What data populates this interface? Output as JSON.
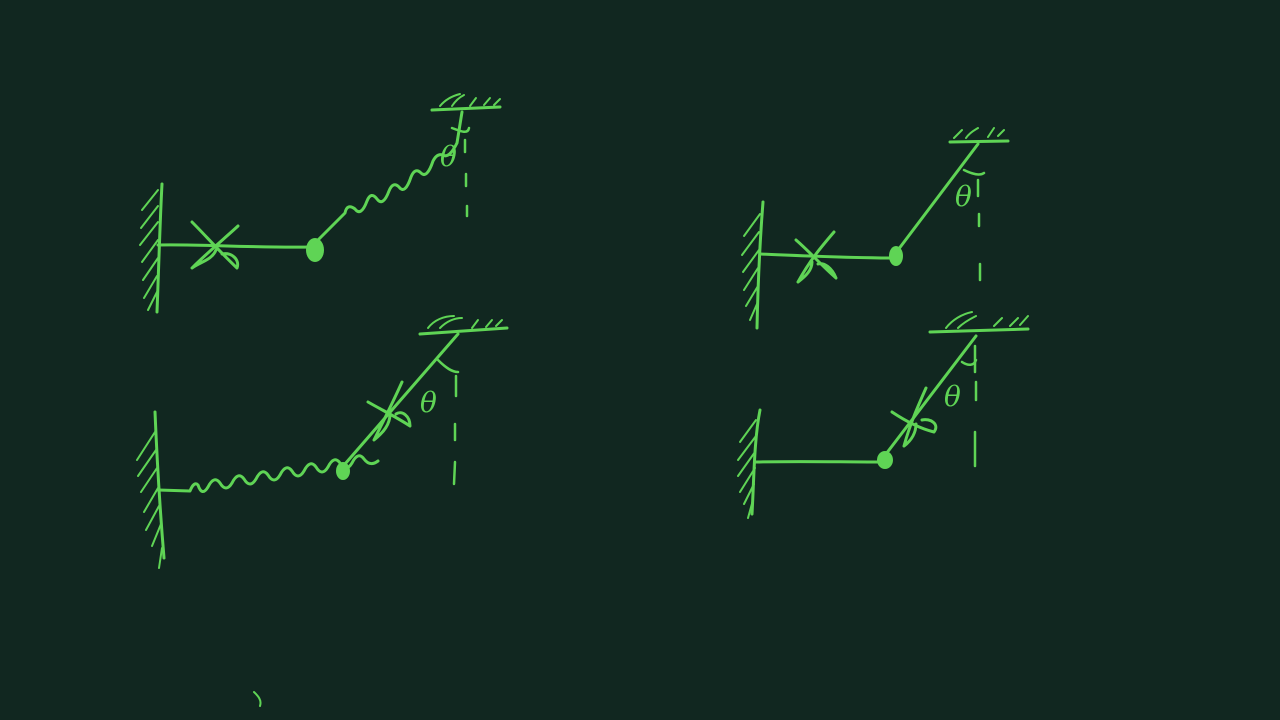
{
  "canvas": {
    "background": "#112720",
    "ink_color": "#5fd455"
  },
  "diagrams": [
    {
      "id": "top-left",
      "theta_label": "θ",
      "horizontal_link": "rod-with-cut",
      "inclined_link": "spring"
    },
    {
      "id": "top-right",
      "theta_label": "θ",
      "horizontal_link": "rod-with-cut",
      "inclined_link": "rod"
    },
    {
      "id": "bottom-left",
      "theta_label": "θ",
      "horizontal_link": "spring",
      "inclined_link": "rod-with-cut"
    },
    {
      "id": "bottom-right",
      "theta_label": "θ",
      "horizontal_link": "rod",
      "inclined_link": "rod-with-cut"
    }
  ]
}
